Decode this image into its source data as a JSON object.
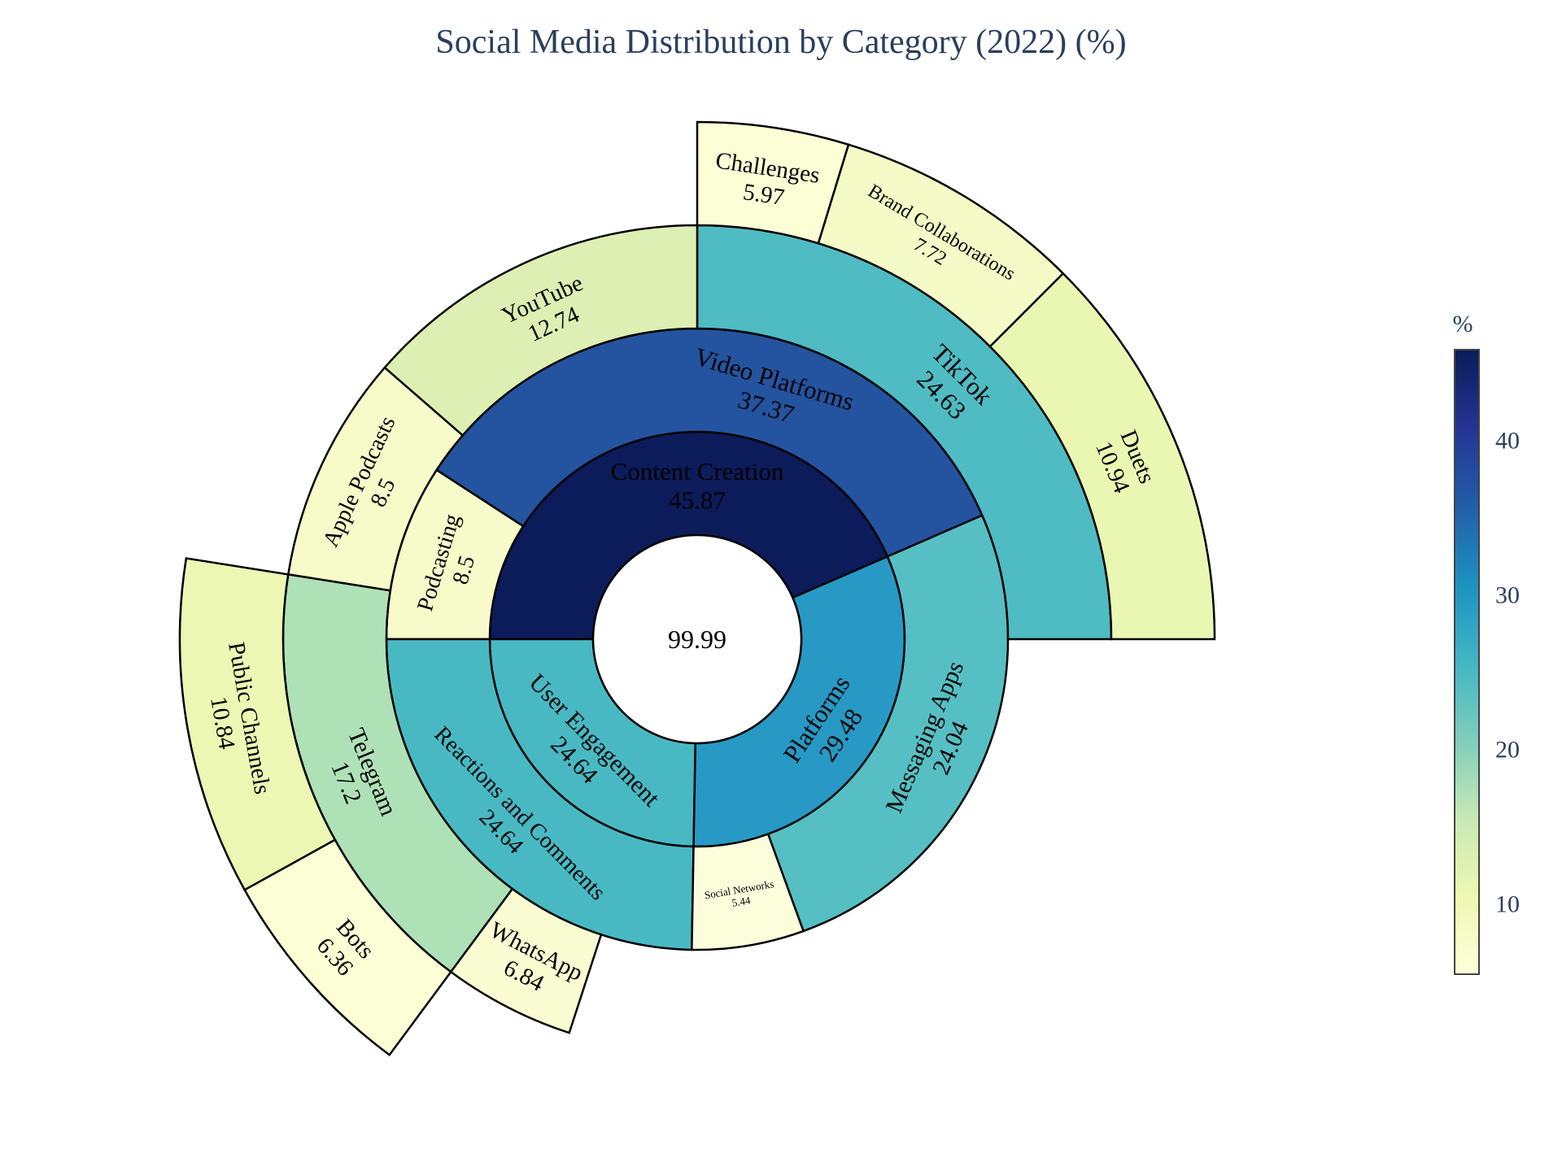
{
  "chart_data": {
    "type": "sunburst",
    "title": "Social Media Distribution by Category (2022) (%)",
    "root": {
      "label": "",
      "value": 99.99,
      "value_text": "99.99"
    },
    "rings": [
      [
        {
          "name": "Content Creation",
          "value": 45.87,
          "value_text": "45.87",
          "start": 0.0,
          "end": 180.0,
          "color": "#0c1c5a",
          "font": 31
        },
        {
          "name": "User Engagement",
          "value": 24.64,
          "value_text": "24.64",
          "start": 180.0,
          "end": 269.0,
          "color": "#48b9c3",
          "font": 30
        },
        {
          "name": "Platforms",
          "value": 29.48,
          "value_text": "29.48",
          "start": 269.0,
          "end": 383.5,
          "color": "#2799c4",
          "font": 31
        }
      ],
      [
        {
          "name": "Video Platforms",
          "value": 37.37,
          "value_text": "37.37",
          "start": 0.0,
          "end": 147.0,
          "color": "#24539f",
          "font": 31
        },
        {
          "name": "Podcasting",
          "value": 8.5,
          "value_text": "8.5",
          "start": 147.0,
          "end": 180.0,
          "color": "#f7fbc9",
          "font": 28
        },
        {
          "name": "Reactions and Comments",
          "value": 24.64,
          "value_text": "24.64",
          "start": 180.0,
          "end": 269.0,
          "color": "#48b9c3",
          "font": 28
        },
        {
          "name": "Social Networks",
          "value": 5.44,
          "value_text": "5.44",
          "start": 269.0,
          "end": 290.0,
          "color": "#fcfedb",
          "font": 13
        },
        {
          "name": "Messaging Apps",
          "value": 24.04,
          "value_text": "24.04",
          "start": 290.0,
          "end": 383.5,
          "color": "#56bfc3",
          "font": 30
        }
      ],
      [
        {
          "name": "TikTok",
          "value": 24.63,
          "value_text": "24.63",
          "start": 0.0,
          "end": 90.0,
          "color": "#4fbbc3",
          "font": 31
        },
        {
          "name": "YouTube",
          "value": 12.74,
          "value_text": "12.74",
          "start": 90.0,
          "end": 139.0,
          "color": "#ddefb2",
          "font": 29
        },
        {
          "name": "Apple Podcasts",
          "value": 8.5,
          "value_text": "8.5",
          "start": 139.0,
          "end": 171.0,
          "color": "#f7fbc9",
          "font": 28
        },
        {
          "name": "Telegram",
          "value": 17.2,
          "value_text": "17.2",
          "start": 171.0,
          "end": 233.5,
          "color": "#afe1b6",
          "font": 30
        },
        {
          "name": "WhatsApp",
          "value": 6.84,
          "value_text": "6.84",
          "start": 233.5,
          "end": 252.0,
          "color": "#fafdd2",
          "font": 29
        }
      ],
      [
        {
          "name": "Duets",
          "value": 10.94,
          "value_text": "10.94",
          "start": 0.0,
          "end": 45.0,
          "color": "#eaf7b3",
          "font": 29
        },
        {
          "name": "Brand Collaborations",
          "value": 7.72,
          "value_text": "7.72",
          "start": 45.0,
          "end": 73.0,
          "color": "#f5fbc7",
          "font": 24
        },
        {
          "name": "Challenges",
          "value": 5.97,
          "value_text": "5.97",
          "start": 73.0,
          "end": 90.0,
          "color": "#fcfed6",
          "font": 29
        },
        {
          "name": "Public Channels",
          "value": 10.84,
          "value_text": "10.84",
          "start": 171.0,
          "end": 209.0,
          "color": "#ebf7b3",
          "font": 29
        },
        {
          "name": "Bots",
          "value": 6.36,
          "value_text": "6.36",
          "start": 209.0,
          "end": 233.5,
          "color": "#fcfed5",
          "font": 29
        }
      ]
    ],
    "colorbar": {
      "title": "%",
      "ticks": [
        10,
        20,
        30,
        40
      ],
      "range": [
        5.44,
        45.87
      ],
      "stops": [
        "#ffffd9",
        "#edf8b1",
        "#c7e9b4",
        "#7fcdbb",
        "#41b6c4",
        "#1d91c0",
        "#225ea8",
        "#253494",
        "#081d58"
      ]
    }
  }
}
